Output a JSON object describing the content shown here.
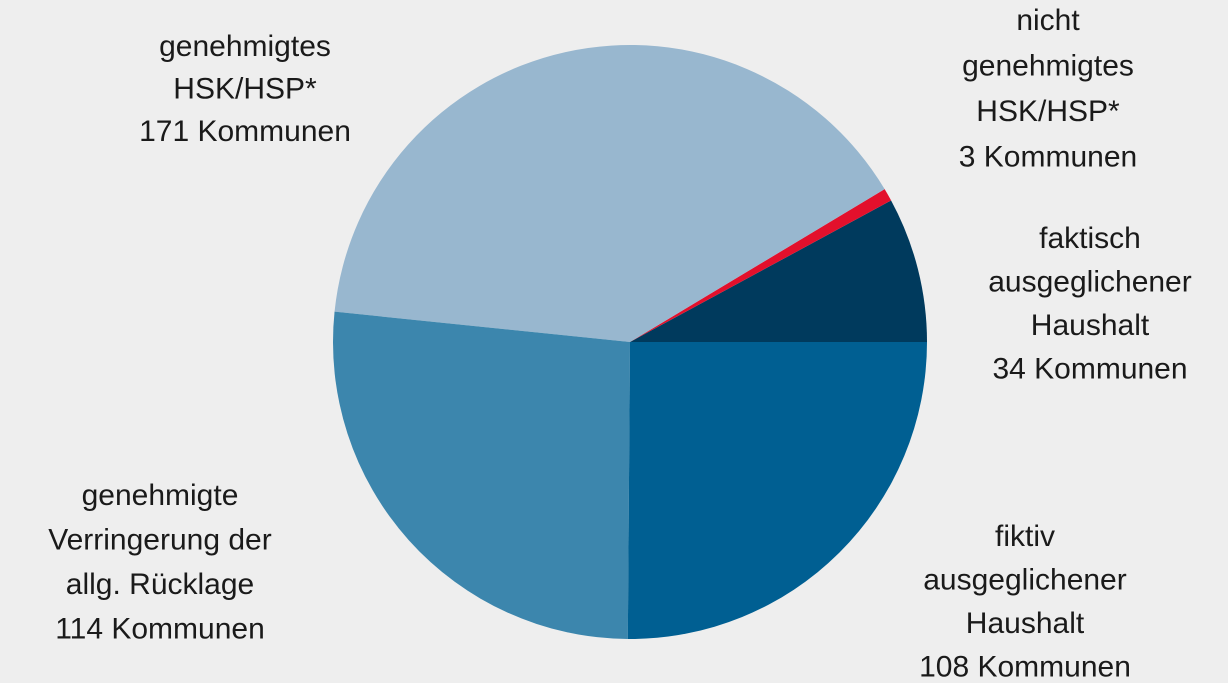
{
  "chart_data": {
    "type": "pie",
    "categories": [
      [
        "faktisch",
        "ausgeglichener",
        "Haushalt"
      ],
      [
        "nicht",
        "genehmigtes",
        "HSK/HSP*"
      ],
      [
        "genehmigtes",
        "HSK/HSP*"
      ],
      [
        "genehmigte",
        "Verringerung der",
        "allg. Rücklage"
      ],
      [
        "fiktiv",
        "ausgeglichener",
        "Haushalt"
      ]
    ],
    "values": [
      34,
      3,
      171,
      114,
      108
    ],
    "value_labels": [
      "34 Kommunen",
      "3 Kommunen",
      "171 Kommunen",
      "114 Kommunen",
      "108 Kommunen"
    ],
    "colors": [
      "#003a5d",
      "#e3102c",
      "#98b7cf",
      "#3c86ad",
      "#005f92"
    ],
    "start_angle": 0,
    "direction": "counterclockwise"
  }
}
